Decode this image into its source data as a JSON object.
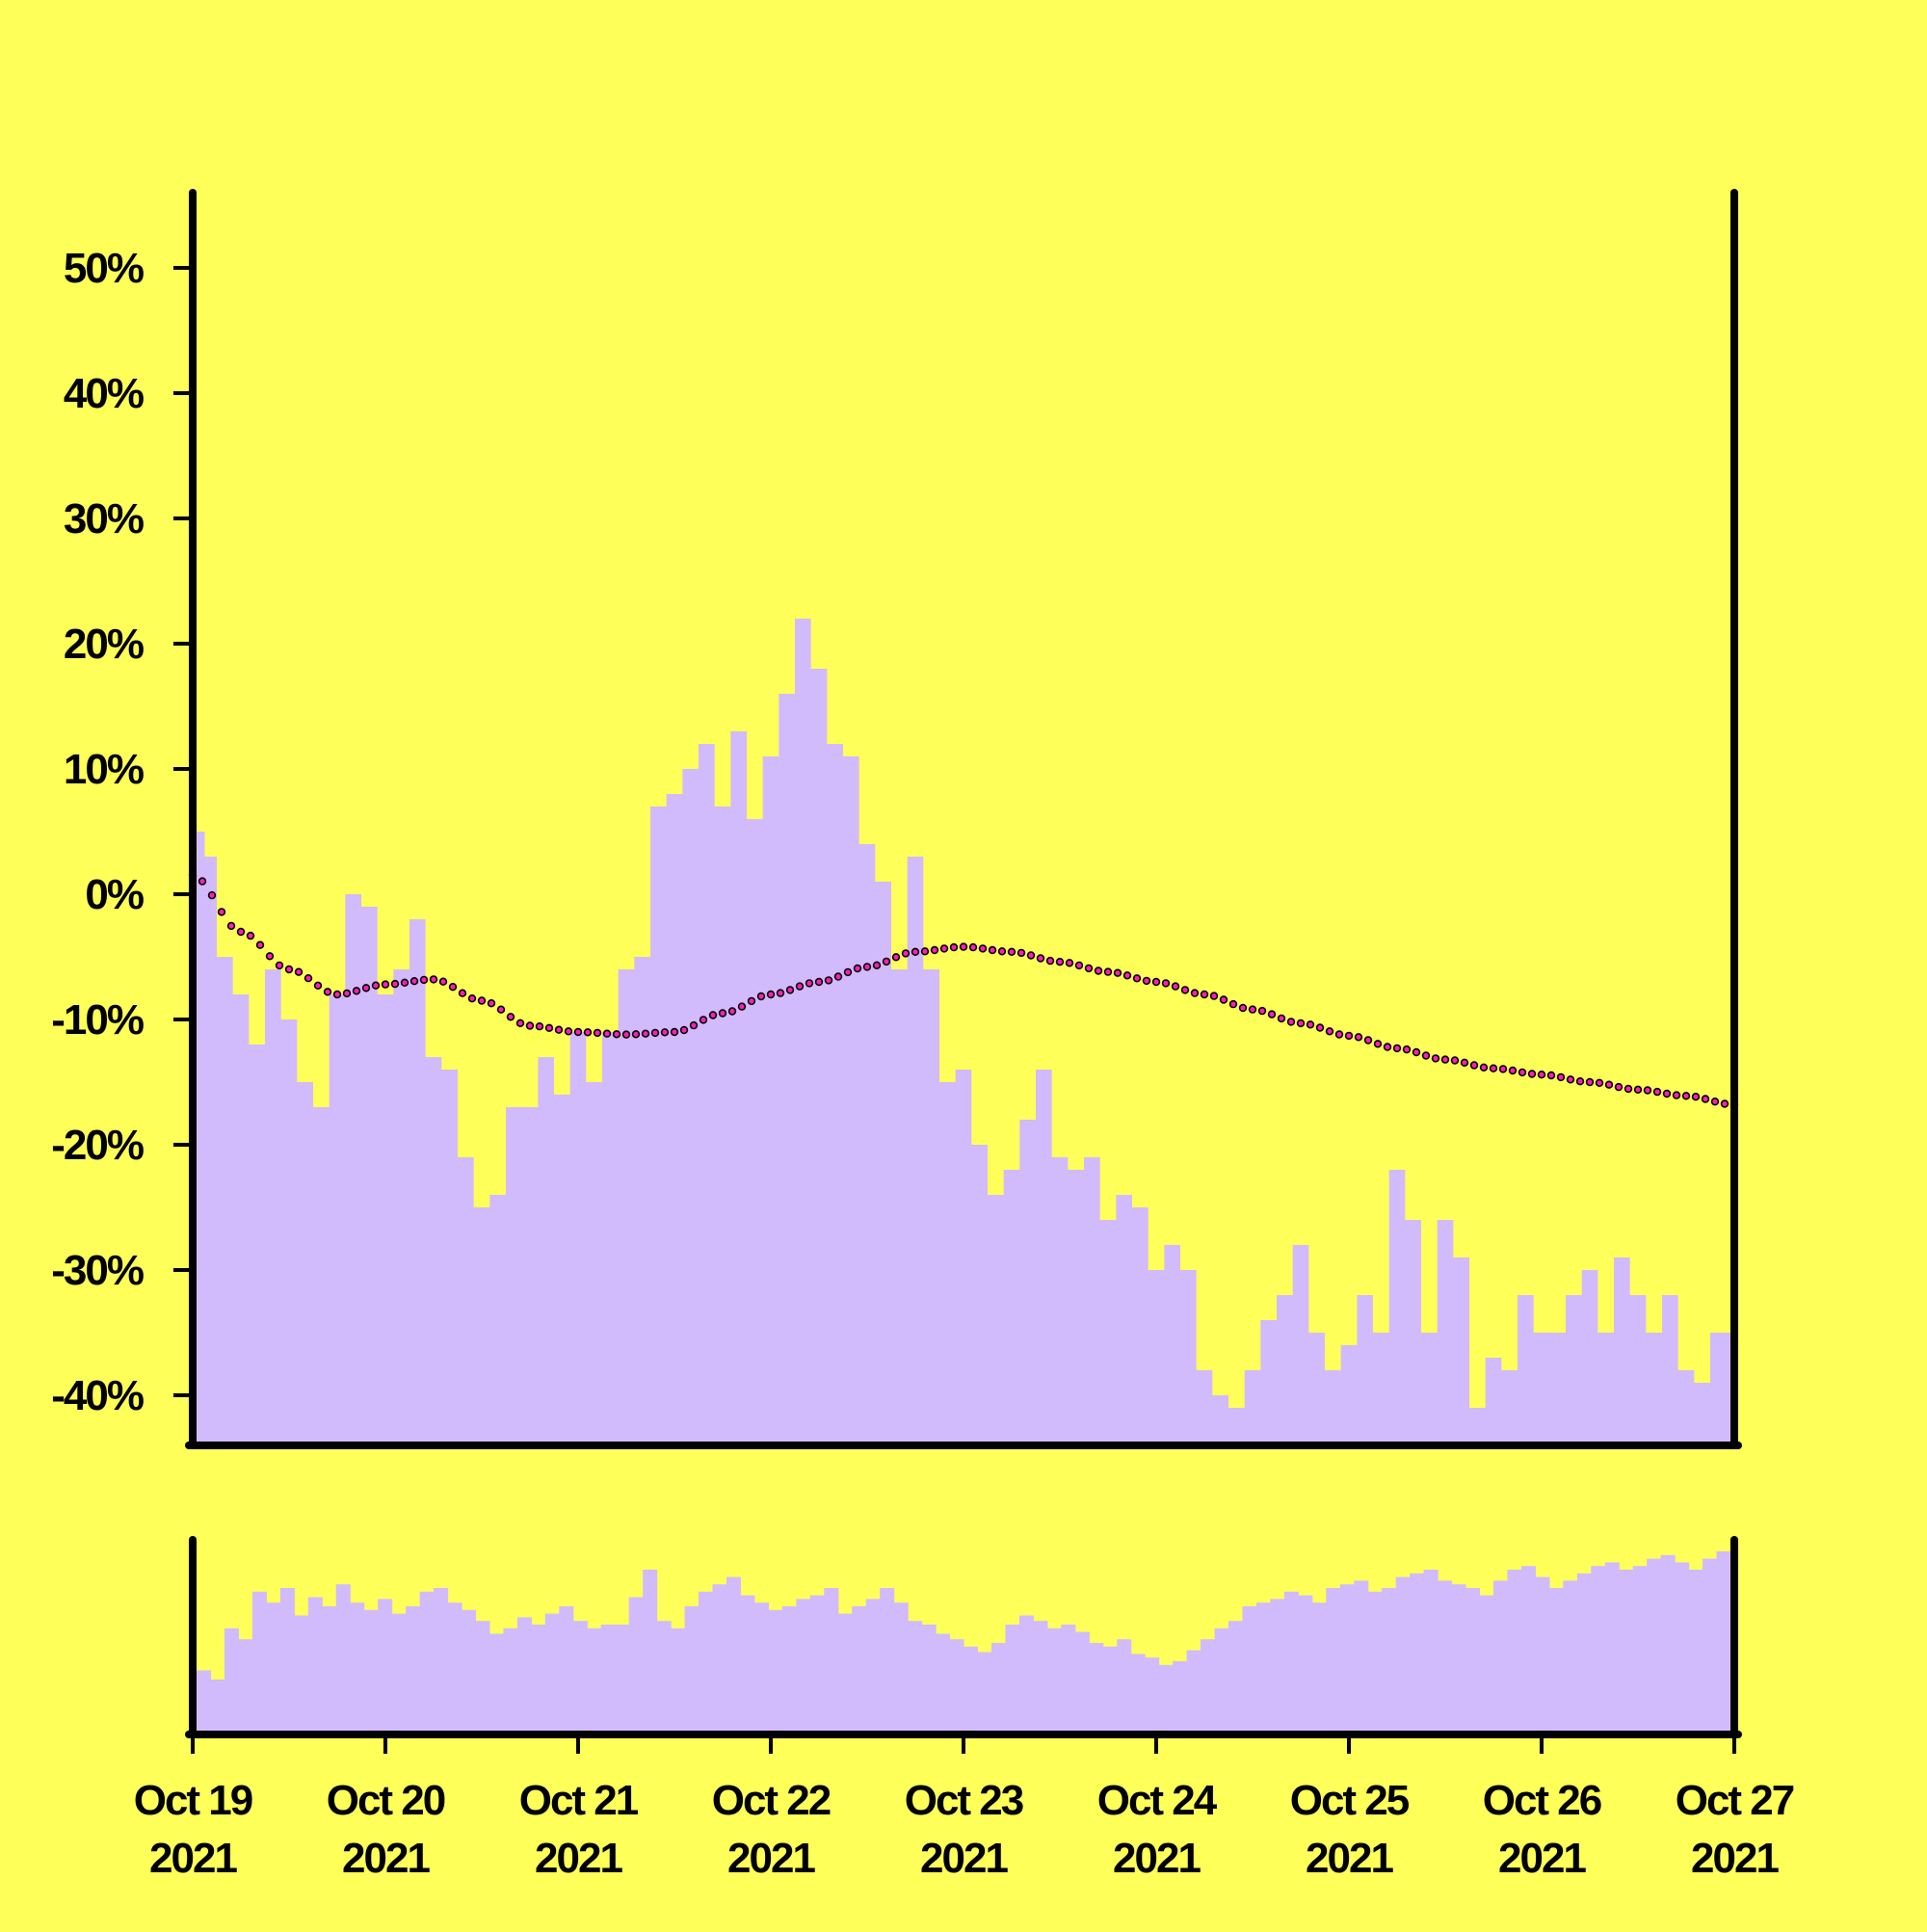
{
  "colors": {
    "background": "#ffff5a",
    "area_fill": "#d1bbfd",
    "volume_fill": "#d1bbfd",
    "trend_dot_fill": "#ff1fb8",
    "trend_dot_stroke": "#000000",
    "axis": "#000000"
  },
  "chart_data": [
    {
      "type": "area",
      "title": "",
      "xlabel": "",
      "ylabel": "",
      "xlim": [
        "2021-10-19",
        "2021-10-27"
      ],
      "ylim": [
        -44,
        56
      ],
      "y_tick_values": [
        -40,
        -30,
        -20,
        -10,
        0,
        10,
        20,
        30,
        40,
        50
      ],
      "y_tick_labels": [
        "-40%",
        "-30%",
        "-20%",
        "-10%",
        "0%",
        "10%",
        "20%",
        "30%",
        "40%",
        "50%"
      ],
      "x_ticks": [
        {
          "value": "2021-10-19",
          "line1": "Oct 19",
          "line2": "2021"
        },
        {
          "value": "2021-10-20",
          "line1": "Oct 20",
          "line2": "2021"
        },
        {
          "value": "2021-10-21",
          "line1": "Oct 21",
          "line2": "2021"
        },
        {
          "value": "2021-10-22",
          "line1": "Oct 22",
          "line2": "2021"
        },
        {
          "value": "2021-10-23",
          "line1": "Oct 23",
          "line2": "2021"
        },
        {
          "value": "2021-10-24",
          "line1": "Oct 24",
          "line2": "2021"
        },
        {
          "value": "2021-10-25",
          "line1": "Oct 25",
          "line2": "2021"
        },
        {
          "value": "2021-10-26",
          "line1": "Oct 26",
          "line2": "2021"
        },
        {
          "value": "2021-10-27",
          "line1": "Oct 27",
          "line2": "2021"
        }
      ],
      "grid": false,
      "legend": "none",
      "series": [
        {
          "kind": "area",
          "x": [
            "2021-10-19 00:00",
            "2021-10-19 01:00",
            "2021-10-19 02:00",
            "2021-10-19 04:00",
            "2021-10-19 06:00",
            "2021-10-19 08:00",
            "2021-10-19 10:00",
            "2021-10-19 12:00",
            "2021-10-19 14:00",
            "2021-10-19 16:00",
            "2021-10-19 18:00",
            "2021-10-19 20:00",
            "2021-10-19 22:00",
            "2021-10-20 00:00",
            "2021-10-20 02:00",
            "2021-10-20 04:00",
            "2021-10-20 06:00",
            "2021-10-20 08:00",
            "2021-10-20 10:00",
            "2021-10-20 12:00",
            "2021-10-20 14:00",
            "2021-10-20 16:00",
            "2021-10-20 18:00",
            "2021-10-20 20:00",
            "2021-10-20 22:00",
            "2021-10-21 00:00",
            "2021-10-21 02:00",
            "2021-10-21 04:00",
            "2021-10-21 06:00",
            "2021-10-21 08:00",
            "2021-10-21 10:00",
            "2021-10-21 12:00",
            "2021-10-21 14:00",
            "2021-10-21 16:00",
            "2021-10-21 18:00",
            "2021-10-21 20:00",
            "2021-10-21 22:00",
            "2021-10-22 00:00",
            "2021-10-22 02:00",
            "2021-10-22 04:00",
            "2021-10-22 06:00",
            "2021-10-22 08:00",
            "2021-10-22 10:00",
            "2021-10-22 12:00",
            "2021-10-22 14:00",
            "2021-10-22 16:00",
            "2021-10-22 18:00",
            "2021-10-22 20:00",
            "2021-10-22 22:00",
            "2021-10-23 00:00",
            "2021-10-23 02:00",
            "2021-10-23 04:00",
            "2021-10-23 06:00",
            "2021-10-23 08:00",
            "2021-10-23 10:00",
            "2021-10-23 12:00",
            "2021-10-23 14:00",
            "2021-10-23 16:00",
            "2021-10-23 18:00",
            "2021-10-23 20:00",
            "2021-10-23 22:00",
            "2021-10-24 00:00",
            "2021-10-24 02:00",
            "2021-10-24 04:00",
            "2021-10-24 06:00",
            "2021-10-24 08:00",
            "2021-10-24 10:00",
            "2021-10-24 12:00",
            "2021-10-24 14:00",
            "2021-10-24 16:00",
            "2021-10-24 18:00",
            "2021-10-24 20:00",
            "2021-10-24 22:00",
            "2021-10-25 00:00",
            "2021-10-25 02:00",
            "2021-10-25 04:00",
            "2021-10-25 06:00",
            "2021-10-25 08:00",
            "2021-10-25 10:00",
            "2021-10-25 12:00",
            "2021-10-25 14:00",
            "2021-10-25 16:00",
            "2021-10-25 18:00",
            "2021-10-25 20:00",
            "2021-10-25 22:00",
            "2021-10-26 00:00",
            "2021-10-26 02:00",
            "2021-10-26 04:00",
            "2021-10-26 06:00",
            "2021-10-26 08:00",
            "2021-10-26 10:00",
            "2021-10-26 12:00",
            "2021-10-26 14:00",
            "2021-10-26 16:00",
            "2021-10-26 18:00",
            "2021-10-26 20:00",
            "2021-10-26 22:00",
            "2021-10-27 00:00"
          ],
          "values": [
            2,
            5,
            3,
            -5,
            -8,
            -12,
            -6,
            -10,
            -15,
            -17,
            -8,
            0,
            -1,
            -8,
            -6,
            -2,
            -13,
            -14,
            -21,
            -25,
            -24,
            -17,
            -17,
            -13,
            -16,
            -11,
            -15,
            -11,
            -6,
            -5,
            7,
            8,
            10,
            12,
            7,
            13,
            6,
            11,
            16,
            22,
            18,
            12,
            11,
            4,
            1,
            -6,
            3,
            -6,
            -15,
            -14,
            -20,
            -24,
            -22,
            -18,
            -14,
            -21,
            -22,
            -21,
            -26,
            -24,
            -25,
            -30,
            -28,
            -30,
            -38,
            -40,
            -41,
            -38,
            -34,
            -32,
            -28,
            -35,
            -38,
            -36,
            -32,
            -35,
            -22,
            -26,
            -35,
            -26,
            -29,
            -41,
            -37,
            -38,
            -32,
            -35,
            -35,
            -32,
            -30,
            -35,
            -29,
            -32,
            -35,
            -32,
            -38,
            -39,
            -35,
            -35
          ]
        },
        {
          "kind": "trend",
          "x": [
            "2021-10-19 00:00",
            "2021-10-19 06:00",
            "2021-10-19 12:00",
            "2021-10-19 18:00",
            "2021-10-20 00:00",
            "2021-10-20 06:00",
            "2021-10-20 12:00",
            "2021-10-20 18:00",
            "2021-10-21 00:00",
            "2021-10-21 06:00",
            "2021-10-21 12:00",
            "2021-10-21 18:00",
            "2021-10-22 00:00",
            "2021-10-22 06:00",
            "2021-10-22 12:00",
            "2021-10-22 18:00",
            "2021-10-23 00:00",
            "2021-10-23 06:00",
            "2021-10-23 12:00",
            "2021-10-23 18:00",
            "2021-10-24 00:00",
            "2021-10-24 06:00",
            "2021-10-24 12:00",
            "2021-10-24 18:00",
            "2021-10-25 00:00",
            "2021-10-25 06:00",
            "2021-10-25 12:00",
            "2021-10-25 18:00",
            "2021-10-26 00:00",
            "2021-10-26 06:00",
            "2021-10-26 12:00",
            "2021-10-26 18:00",
            "2021-10-27 00:00"
          ],
          "values": [
            1.5,
            -3,
            -6,
            -8,
            -7.2,
            -6.8,
            -8.5,
            -10.5,
            -11,
            -11.2,
            -11,
            -9.5,
            -8,
            -7,
            -5.8,
            -4.6,
            -4.2,
            -4.6,
            -5.4,
            -6.2,
            -7,
            -8,
            -9.2,
            -10.3,
            -11.3,
            -12.3,
            -13.2,
            -13.9,
            -14.4,
            -15,
            -15.6,
            -16.1,
            -16.8
          ]
        }
      ]
    },
    {
      "type": "bar",
      "title": "",
      "xlabel": "",
      "ylabel": "",
      "note": "volume panel, no y-axis labels; relative heights",
      "x_start": "2021-10-19",
      "x_end": "2021-10-27",
      "values": [
        35,
        30,
        58,
        52,
        78,
        72,
        80,
        65,
        75,
        70,
        82,
        72,
        68,
        74,
        66,
        70,
        78,
        80,
        72,
        68,
        62,
        55,
        58,
        64,
        60,
        66,
        70,
        62,
        58,
        60,
        60,
        75,
        90,
        62,
        58,
        70,
        78,
        82,
        86,
        76,
        72,
        68,
        70,
        74,
        76,
        80,
        66,
        70,
        74,
        80,
        72,
        62,
        60,
        55,
        52,
        48,
        45,
        50,
        60,
        65,
        62,
        58,
        60,
        56,
        50,
        48,
        52,
        44,
        42,
        38,
        40,
        46,
        52,
        58,
        62,
        70,
        72,
        74,
        78,
        76,
        72,
        80,
        82,
        84,
        78,
        80,
        86,
        88,
        90,
        84,
        82,
        80,
        76,
        84,
        90,
        92,
        86,
        80,
        84,
        88,
        92,
        94,
        90,
        92,
        96,
        98,
        94,
        90,
        96,
        100
      ]
    }
  ]
}
